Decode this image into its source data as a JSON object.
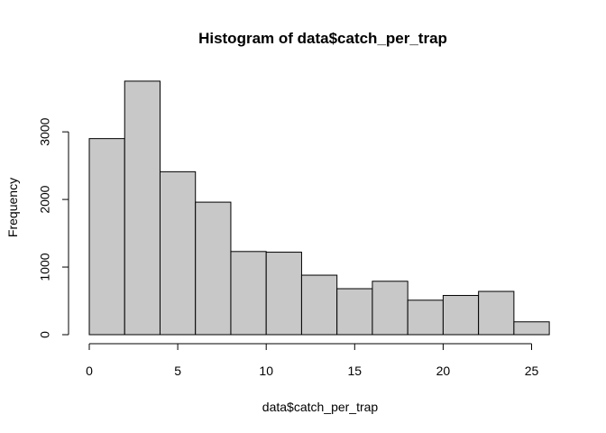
{
  "chart_data": {
    "type": "bar",
    "title": "Histogram of data$catch_per_trap",
    "xlabel": "data$catch_per_trap",
    "ylabel": "Frequency",
    "bins": [
      {
        "from": 0,
        "to": 2,
        "count": 2900
      },
      {
        "from": 2,
        "to": 4,
        "count": 3750
      },
      {
        "from": 4,
        "to": 6,
        "count": 2410
      },
      {
        "from": 6,
        "to": 8,
        "count": 1960
      },
      {
        "from": 8,
        "to": 10,
        "count": 1230
      },
      {
        "from": 10,
        "to": 12,
        "count": 1220
      },
      {
        "from": 12,
        "to": 14,
        "count": 880
      },
      {
        "from": 14,
        "to": 16,
        "count": 680
      },
      {
        "from": 16,
        "to": 18,
        "count": 790
      },
      {
        "from": 18,
        "to": 20,
        "count": 510
      },
      {
        "from": 20,
        "to": 22,
        "count": 580
      },
      {
        "from": 22,
        "to": 24,
        "count": 640
      },
      {
        "from": 24,
        "to": 26,
        "count": 190
      }
    ],
    "x_ticks": [
      0,
      5,
      10,
      15,
      20,
      25
    ],
    "y_ticks": [
      0,
      1000,
      2000,
      3000
    ],
    "xlim": [
      0,
      26
    ],
    "ylim": [
      0,
      3750
    ],
    "bar_color": "#c8c8c8",
    "grid": false,
    "legend": "none"
  }
}
